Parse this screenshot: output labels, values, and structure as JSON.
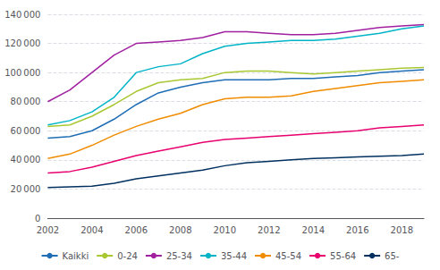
{
  "chart_data": {
    "type": "line",
    "x": [
      2002,
      2003,
      2004,
      2005,
      2006,
      2007,
      2008,
      2009,
      2010,
      2011,
      2012,
      2013,
      2014,
      2015,
      2016,
      2017,
      2018,
      2019
    ],
    "series": [
      {
        "name": "Kaikki",
        "color": "#1f6eb5",
        "values": [
          55000,
          56000,
          60000,
          68000,
          78000,
          86000,
          90000,
          93000,
          95000,
          95000,
          95000,
          96000,
          96000,
          97000,
          98000,
          100000,
          101000,
          102000
        ]
      },
      {
        "name": "0-24",
        "color": "#a8c832",
        "values": [
          63000,
          64000,
          70000,
          78000,
          87000,
          93000,
          95000,
          96000,
          100000,
          101000,
          101000,
          100000,
          99000,
          100000,
          101000,
          102000,
          103000,
          103500
        ]
      },
      {
        "name": "25-34",
        "color": "#a020a0",
        "values": [
          80000,
          88000,
          100000,
          112000,
          120000,
          121000,
          122000,
          124000,
          128000,
          128000,
          127000,
          126000,
          126000,
          127000,
          129000,
          131000,
          132000,
          133000
        ]
      },
      {
        "name": "35-44",
        "color": "#00b4c8",
        "values": [
          64000,
          67000,
          73000,
          83000,
          100000,
          104000,
          106000,
          113000,
          118000,
          120000,
          121000,
          122000,
          122000,
          123000,
          125000,
          127000,
          130000,
          132000
        ]
      },
      {
        "name": "45-54",
        "color": "#f08c00",
        "values": [
          41000,
          44000,
          50000,
          57000,
          63000,
          68000,
          72000,
          78000,
          82000,
          83000,
          83000,
          84000,
          87000,
          89000,
          91000,
          93000,
          94000,
          95000
        ]
      },
      {
        "name": "55-64",
        "color": "#e8006e",
        "values": [
          31000,
          32000,
          35000,
          39000,
          43000,
          46000,
          49000,
          52000,
          54000,
          55000,
          56000,
          57000,
          58000,
          59000,
          60000,
          62000,
          63000,
          64000
        ]
      },
      {
        "name": "65-",
        "color": "#003060",
        "values": [
          21000,
          21500,
          22000,
          24000,
          27000,
          29000,
          31000,
          33000,
          36000,
          38000,
          39000,
          40000,
          41000,
          41500,
          42000,
          42500,
          43000,
          44000
        ]
      }
    ],
    "xlim": [
      2002,
      2019
    ],
    "xticks": [
      2002,
      2004,
      2006,
      2008,
      2010,
      2012,
      2014,
      2016,
      2018
    ],
    "ylim": [
      0,
      140000
    ],
    "yticks": [
      0,
      {
        "value": 20000,
        "label": "20 000"
      },
      {
        "value": 40000,
        "label": "40 000"
      },
      {
        "value": 60000,
        "label": "60 000"
      },
      {
        "value": 80000,
        "label": "80 000"
      },
      {
        "value": 100000,
        "label": "100 000"
      },
      {
        "value": 120000,
        "label": "120 000"
      },
      {
        "value": 140000,
        "label": "140 000"
      }
    ],
    "grid": true,
    "legend": "bottom"
  }
}
